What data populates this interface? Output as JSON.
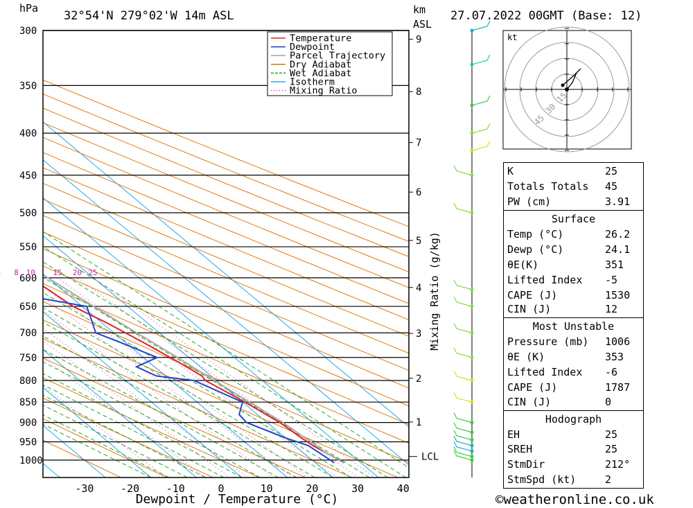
{
  "header": {
    "hpa_label": "hPa",
    "location": "32°54'N  279°02'W  14m  ASL",
    "km_label": "km",
    "asl_label": "ASL",
    "datetime": "27.07.2022  00GMT  (Base: 12)"
  },
  "chart_data": {
    "type": "line",
    "xlabel": "Dewpoint / Temperature (°C)",
    "ylabel": "hPa",
    "x_ticks": [
      -30,
      -20,
      -10,
      0,
      10,
      20,
      30,
      40
    ],
    "pressure_levels": [
      300,
      350,
      400,
      450,
      500,
      550,
      600,
      650,
      700,
      750,
      800,
      850,
      900,
      950,
      1000
    ],
    "height_km_ticks": [
      1,
      2,
      3,
      4,
      5,
      6,
      7,
      8,
      9
    ],
    "lcl_label": "LCL",
    "mixing_ratio_label": "Mixing Ratio (g/kg)",
    "mixing_ratio_values": [
      "1",
      "2",
      "3",
      "4",
      "6",
      "8",
      "10",
      "15",
      "20",
      "25"
    ],
    "legend": [
      {
        "name": "Temperature",
        "color": "#dd2222"
      },
      {
        "name": "Dewpoint",
        "color": "#2244cc"
      },
      {
        "name": "Parcel Trajectory",
        "color": "#aaaaaa"
      },
      {
        "name": "Dry Adiabat",
        "color": "#e07a10"
      },
      {
        "name": "Wet Adiabat",
        "color": "#22aa22"
      },
      {
        "name": "Isotherm",
        "color": "#22aaee"
      },
      {
        "name": "Mixing Ratio",
        "color": "#cc22aa"
      }
    ],
    "series": [
      {
        "name": "Temperature",
        "points": [
          [
            1008,
            26.2
          ],
          [
            1000,
            26
          ],
          [
            960,
            24
          ],
          [
            940,
            23.5
          ],
          [
            900,
            22.8
          ],
          [
            860,
            21
          ],
          [
            840,
            20
          ],
          [
            800,
            17.5
          ],
          [
            790,
            18
          ],
          [
            760,
            16.5
          ],
          [
            720,
            14
          ],
          [
            680,
            11
          ],
          [
            650,
            8
          ],
          [
            620,
            7
          ],
          [
            590,
            5.5
          ],
          [
            560,
            4
          ],
          [
            520,
            1
          ],
          [
            500,
            -1
          ],
          [
            460,
            -4
          ],
          [
            430,
            -7
          ],
          [
            400,
            -9
          ],
          [
            370,
            -12
          ],
          [
            350,
            -15
          ],
          [
            320,
            -19
          ],
          [
            300,
            -22
          ]
        ]
      },
      {
        "name": "Dewpoint",
        "points": [
          [
            1008,
            24.1
          ],
          [
            1000,
            24
          ],
          [
            960,
            23
          ],
          [
            940,
            20
          ],
          [
            900,
            15.5
          ],
          [
            880,
            16
          ],
          [
            850,
            20
          ],
          [
            800,
            15
          ],
          [
            790,
            8
          ],
          [
            770,
            6
          ],
          [
            750,
            13
          ],
          [
            720,
            9
          ],
          [
            700,
            6
          ],
          [
            670,
            9
          ],
          [
            650,
            11
          ],
          [
            630,
            0
          ],
          [
            615,
            1
          ],
          [
            600,
            -3
          ],
          [
            590,
            -8
          ],
          [
            570,
            12
          ],
          [
            550,
            5
          ],
          [
            540,
            0
          ],
          [
            520,
            3
          ],
          [
            505,
            0
          ],
          [
            480,
            -8
          ],
          [
            450,
            -20
          ],
          [
            420,
            -32
          ],
          [
            400,
            -40
          ],
          [
            395,
            -12
          ],
          [
            385,
            -8
          ],
          [
            370,
            -27
          ],
          [
            355,
            -18
          ],
          [
            330,
            2
          ],
          [
            320,
            -5
          ],
          [
            300,
            -12
          ]
        ]
      },
      {
        "name": "Parcel Trajectory",
        "points": [
          [
            1008,
            26.2
          ],
          [
            980,
            25
          ],
          [
            950,
            24.5
          ],
          [
            900,
            23.5
          ],
          [
            850,
            21.5
          ],
          [
            800,
            19.5
          ],
          [
            750,
            17.5
          ],
          [
            700,
            15
          ],
          [
            650,
            12.5
          ],
          [
            600,
            10
          ],
          [
            550,
            7
          ],
          [
            500,
            3.5
          ],
          [
            450,
            0
          ],
          [
            400,
            -5
          ],
          [
            360,
            -10
          ]
        ]
      }
    ]
  },
  "hodograph": {
    "unit_label": "kt",
    "ring_labels": [
      "15",
      "30",
      "45"
    ]
  },
  "indices": [
    {
      "key": "K",
      "value": "25"
    },
    {
      "key": "Totals Totals",
      "value": "45"
    },
    {
      "key": "PW (cm)",
      "value": "3.91"
    }
  ],
  "surface": {
    "title": "Surface",
    "rows": [
      {
        "key": "Temp (°C)",
        "value": "26.2"
      },
      {
        "key": "Dewp (°C)",
        "value": "24.1"
      },
      {
        "key": "θE(K)",
        "value": "351"
      },
      {
        "key": "Lifted Index",
        "value": "-5"
      },
      {
        "key": "CAPE (J)",
        "value": "1530"
      },
      {
        "key": "CIN (J)",
        "value": "12"
      }
    ]
  },
  "most_unstable": {
    "title": "Most Unstable",
    "rows": [
      {
        "key": "Pressure (mb)",
        "value": "1006"
      },
      {
        "key": "θE (K)",
        "value": "353"
      },
      {
        "key": "Lifted Index",
        "value": "-6"
      },
      {
        "key": "CAPE (J)",
        "value": "1787"
      },
      {
        "key": "CIN (J)",
        "value": "0"
      }
    ]
  },
  "hodograph_box": {
    "title": "Hodograph",
    "rows": [
      {
        "key": "EH",
        "value": "25"
      },
      {
        "key": "SREH",
        "value": "25"
      },
      {
        "key": "StmDir",
        "value": "212°"
      },
      {
        "key": "StmSpd (kt)",
        "value": "2"
      }
    ]
  },
  "footer": {
    "copyright": "©weatheronline.co.uk"
  }
}
